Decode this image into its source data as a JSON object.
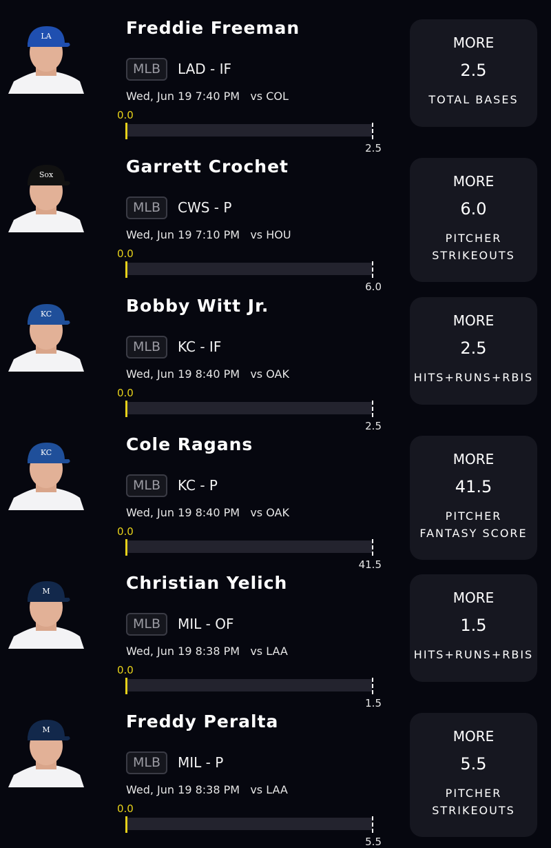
{
  "colors": {
    "background": "#06070f",
    "card": "#161720",
    "progress_start": "#e7d21a"
  },
  "picks": [
    {
      "name": "Freddie Freeman",
      "league": "MLB",
      "team_pos": "LAD - IF",
      "game": "Wed, Jun 19 7:40 PM   vs COL",
      "current": "0.0",
      "target": "2.5",
      "direction": "MORE",
      "line": "2.5",
      "stat": "TOTAL BASES",
      "cap_color": "#1f4fb0",
      "cap_logo": "LA",
      "progress": 0
    },
    {
      "name": "Garrett Crochet",
      "league": "MLB",
      "team_pos": "CWS - P",
      "game": "Wed, Jun 19 7:10 PM   vs HOU",
      "current": "0.0",
      "target": "6.0",
      "direction": "MORE",
      "line": "6.0",
      "stat": "PITCHER\nSTRIKEOUTS",
      "cap_color": "#111111",
      "cap_logo": "Sox",
      "progress": 0
    },
    {
      "name": "Bobby Witt Jr.",
      "league": "MLB",
      "team_pos": "KC - IF",
      "game": "Wed, Jun 19 8:40 PM   vs OAK",
      "current": "0.0",
      "target": "2.5",
      "direction": "MORE",
      "line": "2.5",
      "stat": "HITS+RUNS+RBIS",
      "cap_color": "#1f4f9a",
      "cap_logo": "KC",
      "progress": 0
    },
    {
      "name": "Cole Ragans",
      "league": "MLB",
      "team_pos": "KC - P",
      "game": "Wed, Jun 19 8:40 PM   vs OAK",
      "current": "0.0",
      "target": "41.5",
      "direction": "MORE",
      "line": "41.5",
      "stat": "PITCHER\nFANTASY SCORE",
      "cap_color": "#1f4f9a",
      "cap_logo": "KC",
      "progress": 0
    },
    {
      "name": "Christian Yelich",
      "league": "MLB",
      "team_pos": "MIL - OF",
      "game": "Wed, Jun 19 8:38 PM   vs LAA",
      "current": "0.0",
      "target": "1.5",
      "direction": "MORE",
      "line": "1.5",
      "stat": "HITS+RUNS+RBIS",
      "cap_color": "#12284b",
      "cap_logo": "M",
      "progress": 0
    },
    {
      "name": "Freddy Peralta",
      "league": "MLB",
      "team_pos": "MIL - P",
      "game": "Wed, Jun 19 8:38 PM   vs LAA",
      "current": "0.0",
      "target": "5.5",
      "direction": "MORE",
      "line": "5.5",
      "stat": "PITCHER\nSTRIKEOUTS",
      "cap_color": "#12284b",
      "cap_logo": "M",
      "progress": 0
    }
  ]
}
